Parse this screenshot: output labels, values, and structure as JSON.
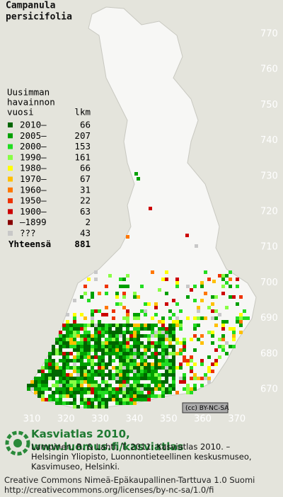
{
  "title": [
    "Campanula",
    "persicifolia"
  ],
  "legend": {
    "header": [
      "Uusimman",
      "havainnon",
      "vuosi"
    ],
    "count_header": "lkm",
    "items": [
      {
        "label": "2010–",
        "count": 66,
        "color": "#006600"
      },
      {
        "label": "2005–",
        "count": 207,
        "color": "#00a000"
      },
      {
        "label": "2000–",
        "count": 153,
        "color": "#22dd22"
      },
      {
        "label": "1990–",
        "count": 161,
        "color": "#88ff44"
      },
      {
        "label": "1980–",
        "count": 66,
        "color": "#ffff00"
      },
      {
        "label": "1970–",
        "count": 67,
        "color": "#ffc000"
      },
      {
        "label": "1960–",
        "count": 31,
        "color": "#ff7700"
      },
      {
        "label": "1950–",
        "count": 22,
        "color": "#ee3300"
      },
      {
        "label": "1900–",
        "count": 63,
        "color": "#cc0000"
      },
      {
        "label": "–1899",
        "count": 2,
        "color": "#880000"
      },
      {
        "label": "???",
        "count": 43,
        "color": "#c8c8c8"
      }
    ],
    "total_label": "Yhteensä",
    "total": 881
  },
  "y_grid_labels": [
    770,
    760,
    750,
    740,
    730,
    720,
    710,
    700,
    690,
    680,
    670
  ],
  "x_grid_labels": [
    310,
    320,
    330,
    340,
    350,
    360,
    370
  ],
  "license_badge": "(cc) BY-NC-SA",
  "footer": {
    "site": "Kasviatlas 2010, www.luomus.fi/kasviatlas",
    "citation": [
      "Lampinen, R. & Lahti, T. 2011: Kasviatlas 2010. –",
      "Helsingin Yliopisto, Luonnontieteellinen keskusmuseo,",
      "Kasvimuseo, Helsinki."
    ],
    "license": [
      "Creative Commons Nimeä-Epäkaupallinen-Tarttuva 1.0 Suomi",
      "http://creativecommons.org/licenses/by-nc-sa/1.0/fi"
    ]
  }
}
